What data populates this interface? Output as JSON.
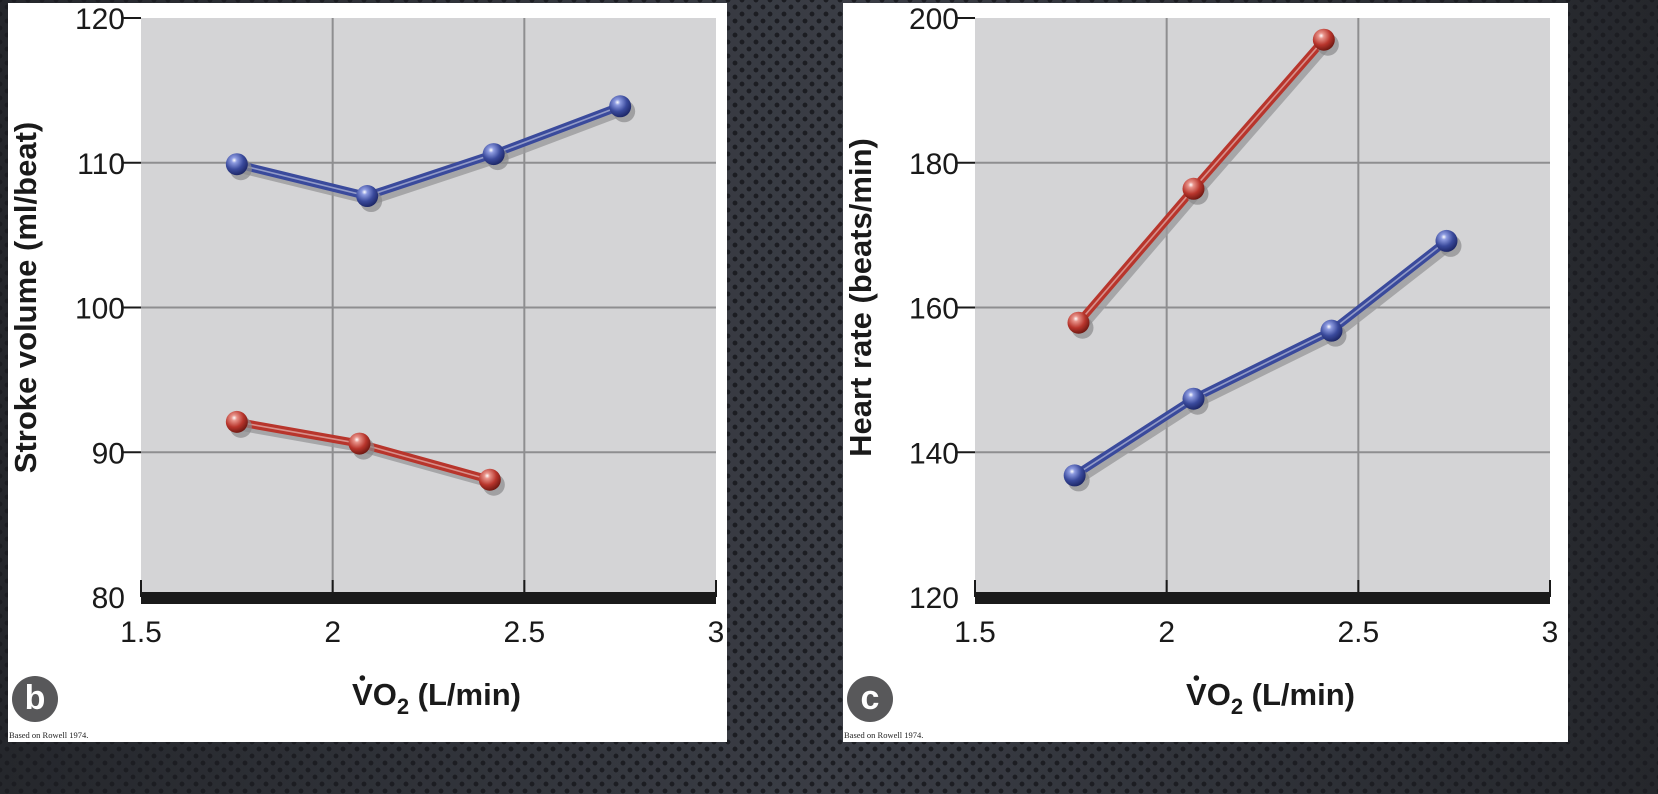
{
  "chart_data": [
    {
      "panel_label": "b",
      "type": "line",
      "title": "",
      "xlabel": "V̇O2 (L/min)",
      "ylabel": "Stroke volume (ml/beat)",
      "xlim": [
        1.5,
        3
      ],
      "ylim": [
        80,
        120
      ],
      "xticks": [
        "1.5",
        "2",
        "2.5",
        "3"
      ],
      "yticks": [
        "80",
        "90",
        "100",
        "110",
        "120"
      ],
      "grid": true,
      "legend": null,
      "series": [
        {
          "name": "blue",
          "color": "#3a4a9c",
          "x": [
            1.75,
            2.09,
            2.42,
            2.75
          ],
          "y": [
            109.9,
            107.7,
            110.6,
            113.9
          ]
        },
        {
          "name": "red",
          "color": "#b8352c",
          "x": [
            1.75,
            2.07,
            2.41
          ],
          "y": [
            92.1,
            90.6,
            88.1
          ]
        }
      ],
      "source_note": "Based on Rowell 1974."
    },
    {
      "panel_label": "c",
      "type": "line",
      "title": "",
      "xlabel": "V̇O2 (L/min)",
      "ylabel": "Heart rate (beats/min)",
      "xlim": [
        1.5,
        3
      ],
      "ylim": [
        120,
        200
      ],
      "xticks": [
        "1.5",
        "2",
        "2.5",
        "3"
      ],
      "yticks": [
        "120",
        "140",
        "160",
        "180",
        "200"
      ],
      "grid": true,
      "legend": null,
      "series": [
        {
          "name": "red",
          "color": "#b8352c",
          "x": [
            1.77,
            2.07,
            2.41
          ],
          "y": [
            157.9,
            176.4,
            197.0
          ]
        },
        {
          "name": "blue",
          "color": "#3a4a9c",
          "x": [
            1.76,
            2.07,
            2.43,
            2.73
          ],
          "y": [
            136.8,
            147.4,
            156.8,
            169.2
          ]
        }
      ],
      "source_note": "Based on Rowell 1974."
    }
  ],
  "panels": {
    "b": {
      "badge": "b",
      "ylabel": "Stroke volume (ml/beat)",
      "xlabel_main": "V",
      "xlabel_sub": "2",
      "xlabel_rest": " (L/min)",
      "xlabel_o": "O",
      "source": "Based on Rowell 1974."
    },
    "c": {
      "badge": "c",
      "ylabel": "Heart rate (beats/min)",
      "xlabel_main": "V",
      "xlabel_sub": "2",
      "xlabel_rest": " (L/min)",
      "xlabel_o": "O",
      "source": "Based on Rowell 1974."
    }
  },
  "colors": {
    "plot_bg": "#d4d4d6",
    "grid": "#8e8e90",
    "axis_bar": "#1a1a1a",
    "blue": "#3a4a9c",
    "red": "#b8352c",
    "badge": "#58585a"
  }
}
